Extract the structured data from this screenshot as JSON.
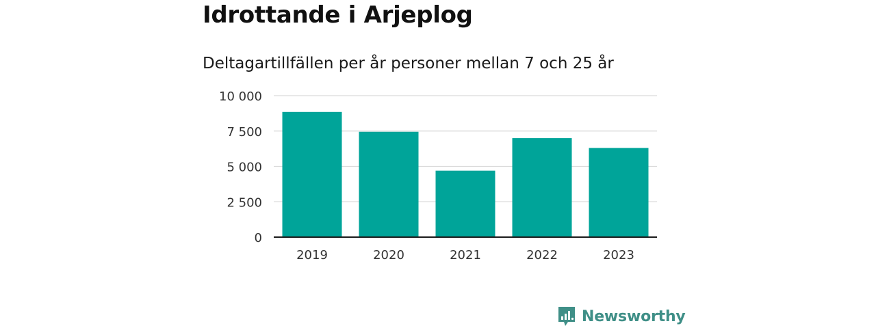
{
  "title": "Idrottande i Arjeplog",
  "subtitle": "Deltagartillfällen per år personer mellan 7 och 25 år",
  "colors": {
    "bar": "#00a499",
    "grid": "#d9d9d9",
    "axis": "#1a1a1a",
    "brand": "#3f8f87"
  },
  "chart_data": {
    "type": "bar",
    "categories": [
      "2019",
      "2020",
      "2021",
      "2022",
      "2023"
    ],
    "values": [
      8850,
      7450,
      4700,
      7000,
      6300
    ],
    "ylim": [
      0,
      10000
    ],
    "yticks": [
      0,
      2500,
      5000,
      7500,
      10000
    ],
    "ytick_labels": [
      "0",
      "2 500",
      "5 000",
      "7 500",
      "10 000"
    ],
    "grid": true,
    "legend": "none"
  },
  "logo": {
    "name": "newsworthy-logo-icon",
    "text": "Newsworthy"
  }
}
